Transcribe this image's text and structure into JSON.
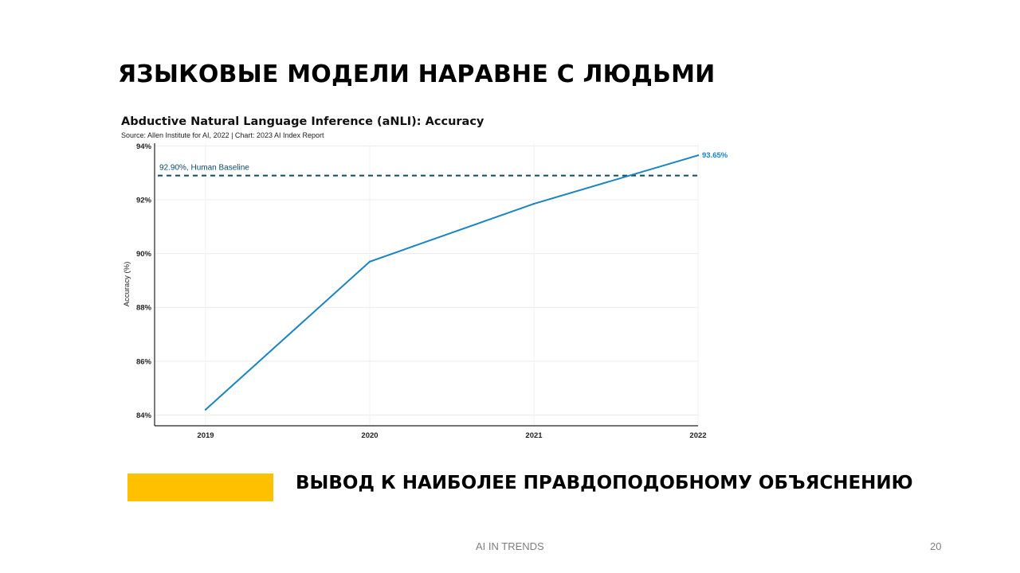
{
  "slide": {
    "title": "ЯЗЫКОВЫЕ МОДЕЛИ НАРАВНЕ С ЛЮДЬМИ",
    "conclusion": "ВЫВОД К НАИБОЛЕЕ ПРАВДОПОДОБНОМУ ОБЪЯСНЕНИЮ",
    "highlight_color": "#FFC000",
    "footer": "AI IN TRENDS",
    "page_number": "20"
  },
  "chart_data": {
    "type": "line",
    "title": "Abductive Natural Language Inference (aNLI): Accuracy",
    "subtitle": "Source: Allen Institute for AI, 2022 | Chart: 2023 AI Index Report",
    "ylabel": "Accuracy (%)",
    "xlabel": "",
    "x": [
      "2019",
      "2020",
      "2021",
      "2022"
    ],
    "series": [
      {
        "values": [
          84.2,
          89.7,
          91.85,
          93.65
        ],
        "color": "#1B84C2"
      }
    ],
    "end_label": "93.65%",
    "baseline": {
      "value": 92.9,
      "label": "92.90%, Human Baseline",
      "color": "#0E4A63"
    },
    "ylim": [
      83.6,
      94.1
    ],
    "yticks": [
      84,
      86,
      88,
      90,
      92,
      94
    ],
    "ytick_labels": [
      "84%",
      "86%",
      "88%",
      "90%",
      "92%",
      "94%"
    ],
    "grid": true,
    "legend": "none"
  }
}
